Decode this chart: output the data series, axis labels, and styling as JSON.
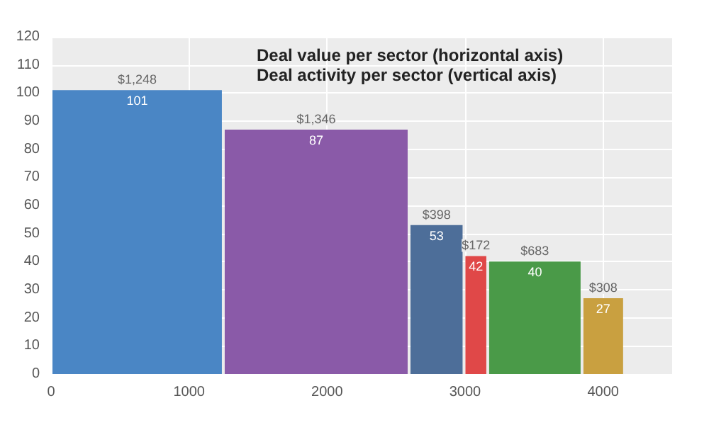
{
  "chart_data": {
    "type": "histogram",
    "title": "Deal value per sector (horizontal axis)",
    "subtitle": "Deal activity per sector (vertical axis)",
    "bins": [
      0,
      1248,
      2594,
      2992,
      3164,
      3847,
      4155
    ],
    "values": [
      101,
      87,
      53,
      42,
      40,
      27
    ],
    "colors": [
      "#4a86c5",
      "#8a5aa8",
      "#4d6e99",
      "#e04848",
      "#4a9a48",
      "#c9a040"
    ],
    "data_labels": true,
    "annotations": [
      {
        "text": "$1,248",
        "x": 624,
        "y": 101
      },
      {
        "text": "$1,346",
        "x": 1921,
        "y": 87
      },
      {
        "text": "$398",
        "x": 2793,
        "y": 53
      },
      {
        "text": "$172",
        "x": 3078,
        "y": 42
      },
      {
        "text": "$683",
        "x": 3505,
        "y": 40
      },
      {
        "text": "$308",
        "x": 4001,
        "y": 27
      }
    ],
    "xlim": [
      0,
      4500
    ],
    "xticks": [
      0,
      1000,
      2000,
      3000,
      4000
    ],
    "ylim": [
      0,
      120
    ],
    "yticks": [
      0,
      10,
      20,
      30,
      40,
      50,
      60,
      70,
      80,
      90,
      100,
      110,
      120
    ],
    "grid": true
  }
}
